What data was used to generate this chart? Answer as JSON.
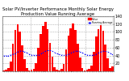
{
  "title": "Solar PV/Inverter Performance Monthly Solar Energy Production Value Running Average",
  "bar_values": [
    3,
    5,
    8,
    25,
    70,
    105,
    120,
    100,
    65,
    30,
    8,
    3,
    4,
    6,
    20,
    60,
    95,
    115,
    125,
    108,
    72,
    38,
    10,
    4,
    3,
    7,
    18,
    55,
    90,
    110,
    122,
    105,
    70,
    35,
    9,
    3,
    5,
    6,
    15,
    50,
    88,
    108,
    118,
    102,
    68,
    32,
    8,
    12
  ],
  "running_avg": [
    40,
    40,
    40,
    42,
    44,
    46,
    50,
    52,
    52,
    50,
    47,
    44,
    42,
    41,
    41,
    42,
    45,
    48,
    51,
    53,
    53,
    51,
    48,
    45,
    43,
    42,
    41,
    42,
    44,
    47,
    50,
    52,
    52,
    50,
    47,
    44,
    42,
    41,
    41,
    42,
    44,
    47,
    50,
    52,
    51,
    49,
    46,
    44
  ],
  "bar_color": "#ff0000",
  "avg_color": "#0000ff",
  "bg_color": "#ffffff",
  "grid_color": "#b0b0b0",
  "ylim": [
    0,
    140
  ],
  "ytick_values": [
    20,
    40,
    60,
    80,
    100,
    120,
    140
  ],
  "title_fontsize": 3.8,
  "tick_fontsize": 3.5,
  "n_bars": 48
}
